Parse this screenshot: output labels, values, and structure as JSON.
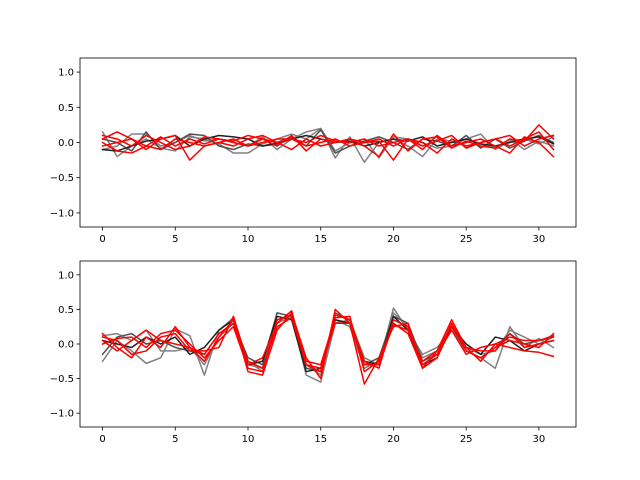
{
  "chart_data": [
    {
      "type": "line",
      "title": "",
      "xlabel": "",
      "ylabel": "",
      "xlim": [
        -1.55,
        32.55
      ],
      "ylim": [
        -1.2,
        1.2
      ],
      "xticks": [
        0,
        5,
        10,
        15,
        20,
        25,
        30
      ],
      "yticks": [
        -1.0,
        -0.5,
        0.0,
        0.5,
        1.0
      ],
      "xtick_labels": [
        "0",
        "5",
        "10",
        "15",
        "20",
        "25",
        "30"
      ],
      "ytick_labels": [
        "−1.0",
        "−0.5",
        "0.0",
        "0.5",
        "1.0"
      ],
      "grid": false,
      "x": [
        0,
        1,
        2,
        3,
        4,
        5,
        6,
        7,
        8,
        9,
        10,
        11,
        12,
        13,
        14,
        15,
        16,
        17,
        18,
        19,
        20,
        21,
        22,
        23,
        24,
        25,
        26,
        27,
        28,
        29,
        30,
        31
      ],
      "series": [
        {
          "color": "#808080",
          "values": [
            0.15,
            -0.2,
            -0.05,
            0.05,
            -0.08,
            -0.12,
            0.08,
            0.05,
            -0.02,
            -0.15,
            -0.15,
            -0.02,
            0.05,
            0.12,
            0.05,
            0.2,
            -0.22,
            0.08,
            -0.28,
            0.0,
            0.05,
            -0.05,
            -0.2,
            0.05,
            0.02,
            -0.05,
            -0.02,
            -0.08,
            0.05,
            -0.1,
            0.02,
            -0.05
          ]
        },
        {
          "color": "#808080",
          "values": [
            -0.1,
            -0.05,
            0.12,
            0.12,
            -0.05,
            0.0,
            0.1,
            0.02,
            0.05,
            0.0,
            -0.05,
            0.08,
            -0.1,
            0.05,
            0.15,
            0.2,
            -0.12,
            0.0,
            0.05,
            -0.22,
            0.08,
            0.05,
            0.0,
            -0.08,
            -0.05,
            0.05,
            0.12,
            -0.1,
            0.02,
            0.05,
            -0.02,
            0.08
          ]
        },
        {
          "color": "#505050",
          "values": [
            0.05,
            0.0,
            -0.12,
            0.15,
            -0.1,
            0.0,
            0.12,
            0.1,
            -0.05,
            -0.1,
            -0.02,
            -0.05,
            0.0,
            0.08,
            -0.05,
            0.18,
            -0.15,
            -0.05,
            0.02,
            0.08,
            0.0,
            -0.1,
            0.05,
            0.02,
            -0.05,
            0.1,
            -0.08,
            0.05,
            -0.08,
            0.02,
            0.1,
            0.0
          ]
        },
        {
          "color": "#202020",
          "values": [
            -0.1,
            -0.12,
            -0.05,
            0.02,
            0.05,
            0.1,
            -0.05,
            0.05,
            0.1,
            0.08,
            0.05,
            -0.05,
            -0.02,
            0.05,
            0.1,
            0.05,
            0.0,
            0.02,
            -0.05,
            0.0,
            0.05,
            0.02,
            0.08,
            -0.05,
            0.0,
            0.05,
            -0.02,
            -0.05,
            0.0,
            0.05,
            0.08,
            -0.02
          ]
        },
        {
          "color": "#ff0000",
          "values": [
            0.05,
            0.15,
            0.05,
            -0.1,
            0.05,
            0.1,
            -0.25,
            -0.05,
            0.0,
            0.05,
            -0.05,
            0.05,
            -0.05,
            0.1,
            -0.12,
            0.05,
            0.0,
            0.05,
            -0.05,
            -0.2,
            0.12,
            -0.12,
            0.05,
            0.08,
            -0.08,
            0.02,
            -0.05,
            -0.08,
            0.05,
            0.02,
            0.25,
            0.05
          ]
        },
        {
          "color": "#ff0000",
          "values": [
            0.0,
            -0.12,
            -0.15,
            -0.05,
            -0.1,
            0.05,
            0.0,
            -0.05,
            0.0,
            -0.05,
            0.05,
            0.1,
            0.0,
            -0.1,
            0.05,
            -0.05,
            0.0,
            0.05,
            0.0,
            0.05,
            -0.05,
            0.05,
            -0.1,
            0.1,
            -0.05,
            0.0,
            0.05,
            -0.05,
            -0.15,
            0.08,
            0.0,
            -0.2
          ]
        },
        {
          "color": "#ff0000",
          "values": [
            -0.05,
            0.0,
            0.05,
            -0.05,
            0.08,
            -0.05,
            0.05,
            -0.02,
            0.05,
            0.0,
            -0.05,
            0.0,
            0.05,
            0.05,
            -0.05,
            0.0,
            0.05,
            -0.05,
            0.0,
            0.02,
            -0.25,
            0.05,
            0.0,
            -0.15,
            0.05,
            -0.05,
            0.0,
            0.05,
            -0.05,
            0.05,
            0.15,
            -0.1
          ]
        },
        {
          "color": "#ff0000",
          "values": [
            0.1,
            0.05,
            -0.05,
            0.1,
            0.0,
            -0.1,
            -0.05,
            0.08,
            0.05,
            0.02,
            0.1,
            0.05,
            0.0,
            0.05,
            0.0,
            0.1,
            0.02,
            0.0,
            0.05,
            -0.05,
            0.0,
            0.05,
            -0.05,
            0.02,
            0.1,
            -0.08,
            0.0,
            0.05,
            0.1,
            -0.05,
            0.05,
            0.1
          ]
        }
      ]
    },
    {
      "type": "line",
      "title": "",
      "xlabel": "",
      "ylabel": "",
      "xlim": [
        -1.55,
        32.55
      ],
      "ylim": [
        -1.2,
        1.2
      ],
      "xticks": [
        0,
        5,
        10,
        15,
        20,
        25,
        30
      ],
      "yticks": [
        -1.0,
        -0.5,
        0.0,
        0.5,
        1.0
      ],
      "xtick_labels": [
        "0",
        "5",
        "10",
        "15",
        "20",
        "25",
        "30"
      ],
      "ytick_labels": [
        "−1.0",
        "−0.5",
        "0.0",
        "0.5",
        "1.0"
      ],
      "grid": false,
      "x": [
        0,
        1,
        2,
        3,
        4,
        5,
        6,
        7,
        8,
        9,
        10,
        11,
        12,
        13,
        14,
        15,
        16,
        17,
        18,
        19,
        20,
        21,
        22,
        23,
        24,
        25,
        26,
        27,
        28,
        29,
        30,
        31
      ],
      "series": [
        {
          "color": "#808080",
          "values": [
            -0.25,
            0.05,
            -0.1,
            -0.28,
            -0.2,
            0.22,
            0.12,
            -0.45,
            0.2,
            0.38,
            -0.25,
            -0.4,
            0.3,
            0.4,
            -0.45,
            -0.55,
            0.3,
            0.35,
            -0.2,
            -0.3,
            0.52,
            0.2,
            -0.15,
            -0.05,
            0.2,
            -0.1,
            -0.2,
            -0.35,
            0.25,
            -0.05,
            0.08,
            -0.05
          ]
        },
        {
          "color": "#808080",
          "values": [
            0.12,
            0.15,
            0.05,
            0.2,
            -0.1,
            -0.1,
            -0.05,
            -0.3,
            0.1,
            0.3,
            -0.3,
            -0.35,
            0.35,
            0.4,
            -0.3,
            -0.45,
            0.35,
            0.25,
            -0.35,
            -0.25,
            0.45,
            0.25,
            -0.2,
            -0.1,
            0.3,
            -0.05,
            -0.15,
            -0.1,
            0.2,
            0.1,
            0.0,
            0.1
          ]
        },
        {
          "color": "#505050",
          "values": [
            -0.15,
            0.1,
            0.15,
            0.0,
            0.05,
            -0.05,
            -0.1,
            -0.15,
            0.15,
            0.3,
            -0.2,
            -0.3,
            0.45,
            0.4,
            -0.35,
            -0.4,
            0.45,
            0.35,
            -0.3,
            -0.2,
            0.4,
            0.3,
            -0.25,
            -0.15,
            0.25,
            -0.1,
            -0.2,
            -0.05,
            0.15,
            0.0,
            0.05,
            0.1
          ]
        },
        {
          "color": "#202020",
          "values": [
            0.05,
            0.0,
            -0.05,
            0.1,
            0.0,
            0.1,
            -0.15,
            -0.05,
            0.2,
            0.35,
            -0.3,
            -0.25,
            0.4,
            0.35,
            -0.4,
            -0.35,
            0.35,
            0.3,
            -0.25,
            -0.3,
            0.4,
            0.2,
            -0.3,
            -0.2,
            0.25,
            0.0,
            -0.15,
            0.1,
            0.05,
            -0.1,
            0.0,
            0.05
          ]
        },
        {
          "color": "#ff0000",
          "values": [
            0.15,
            -0.05,
            -0.2,
            0.1,
            -0.05,
            0.25,
            -0.05,
            -0.25,
            0.1,
            0.35,
            -0.4,
            -0.45,
            0.2,
            0.45,
            -0.2,
            -0.5,
            0.5,
            0.3,
            -0.58,
            -0.2,
            0.25,
            0.3,
            -0.35,
            -0.1,
            0.35,
            -0.05,
            -0.25,
            0.0,
            -0.05,
            -0.1,
            -0.12,
            -0.18
          ]
        },
        {
          "color": "#ff0000",
          "values": [
            0.1,
            0.05,
            -0.15,
            -0.1,
            0.1,
            0.15,
            -0.1,
            -0.1,
            -0.05,
            0.4,
            -0.3,
            -0.2,
            0.3,
            0.48,
            -0.3,
            -0.4,
            0.42,
            0.35,
            -0.25,
            -0.35,
            0.35,
            0.25,
            -0.3,
            -0.15,
            0.2,
            -0.15,
            -0.05,
            0.0,
            0.1,
            0.05,
            0.05,
            0.12
          ]
        },
        {
          "color": "#ff0000",
          "values": [
            0.0,
            0.08,
            0.1,
            -0.05,
            0.15,
            0.2,
            0.0,
            -0.2,
            0.05,
            0.25,
            -0.35,
            -0.4,
            0.35,
            0.42,
            -0.25,
            -0.3,
            0.38,
            0.4,
            -0.4,
            -0.25,
            0.3,
            0.15,
            -0.35,
            -0.2,
            0.3,
            -0.1,
            -0.2,
            -0.05,
            0.05,
            0.0,
            -0.05,
            0.15
          ]
        },
        {
          "color": "#ff0000",
          "values": [
            0.05,
            -0.1,
            0.05,
            0.2,
            0.05,
            0.0,
            -0.05,
            -0.15,
            0.15,
            0.3,
            -0.25,
            -0.35,
            0.25,
            0.38,
            -0.3,
            -0.35,
            0.3,
            0.3,
            -0.3,
            -0.3,
            0.28,
            0.2,
            -0.25,
            -0.1,
            0.25,
            -0.05,
            -0.1,
            -0.1,
            0.15,
            -0.05,
            0.0,
            0.05
          ]
        }
      ]
    }
  ]
}
